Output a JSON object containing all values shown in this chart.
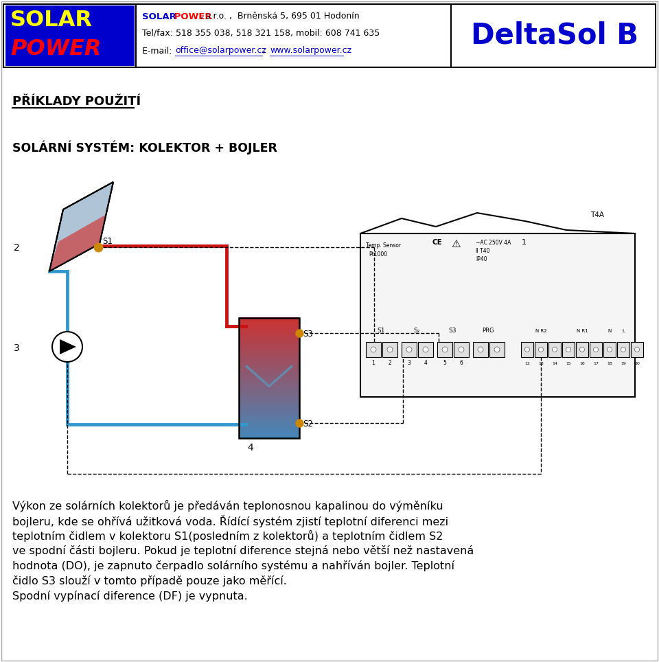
{
  "page_bg": "#ffffff",
  "logo_bg": "#0000cc",
  "logo_solar": "#ffff00",
  "logo_power": "#ff0000",
  "company_line1_solar": "SOLAR",
  "company_line1_power": " POWER",
  "company_line1_rest": ", s.r.o. ,  Brněnská 5, 695 01 Hodonín",
  "company_line2": "Tel/fax: 518 355 038, 518 321 158, mobil: 608 741 635",
  "company_line3_prefix": "E-mail: ",
  "company_line3_email": "office@solarpower.cz",
  "company_line3_comma": ", ",
  "company_line3_www": "www.solarpower.cz",
  "deltasol": "DeltaSol B",
  "deltasol_color": "#0000cc",
  "heading1": "PŘÍKLADY POUŽITÍ",
  "heading2": "SOLÁRNÍ SYSTÉM: KOLEKTOR + BOJLER",
  "body_lines": [
    "Výkon ze solárních kolektorů je předáván teplonosnou kapalinou do výměníku",
    "bojleru, kde se ohřívá užitková voda. Řídící systém zjistí teplotní diferenci mezi",
    "teplotním čidlem v kolektoru S1(posledním z kolektorů) a teplotním čidlem S2",
    "ve spodní části bojleru. Pokud je teplotní diference stejná nebo větší než nastavená",
    "hodnota (DO), je zapnuto čerpadlo solárního systému a nahříván bojler. Teplotní",
    "čidlo S3 slouží v tomto případě pouze jako měřící.",
    "Spodní vypínací diference (DF) je vypnuta."
  ],
  "red_pipe": "#cc1111",
  "blue_pipe": "#3399cc",
  "sensor_color": "#cc8800",
  "pipe_lw": 3.5
}
